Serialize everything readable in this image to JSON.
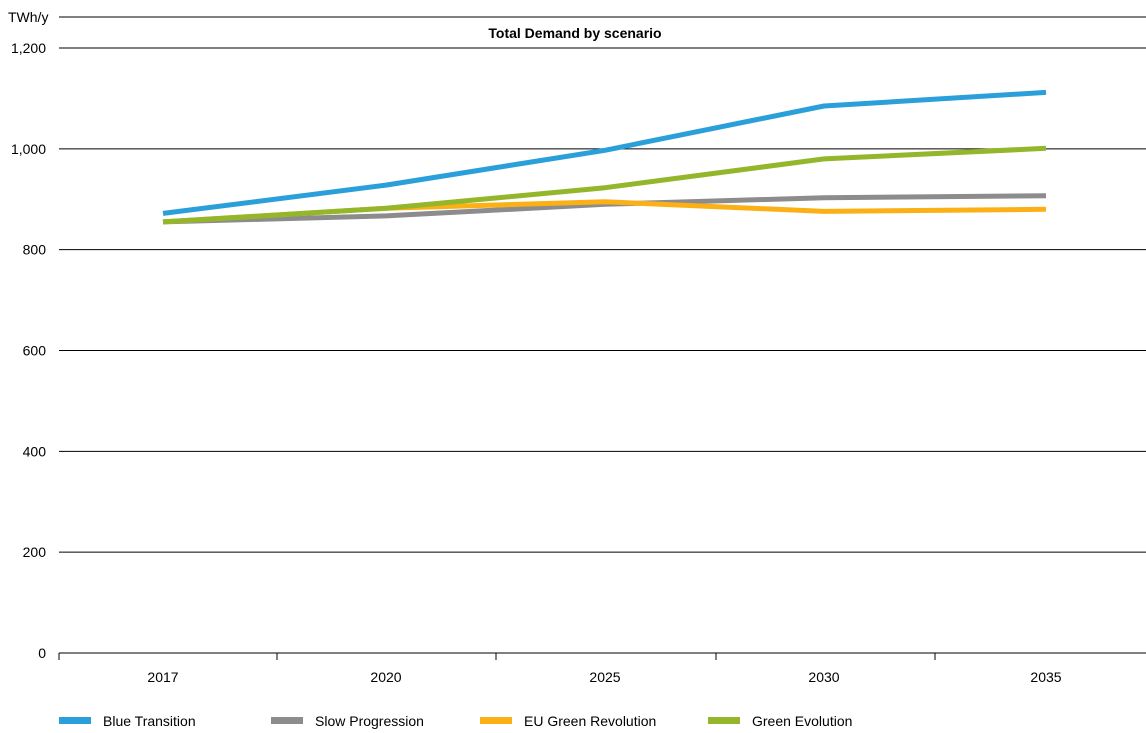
{
  "chart_data": {
    "type": "line",
    "title": "Total Demand by scenario",
    "ylabel": "TWh/y",
    "xlabel": "",
    "categories": [
      "2017",
      "2020",
      "2025",
      "2030",
      "2035"
    ],
    "ylim": [
      0,
      1200
    ],
    "yticks": [
      0,
      200,
      400,
      600,
      800,
      1000,
      1200
    ],
    "ytick_labels": [
      "0",
      "200",
      "400",
      "600",
      "800",
      "1,000",
      "1,200"
    ],
    "grid": "horizontal",
    "legend_position": "bottom",
    "series": [
      {
        "name": "Blue Transition",
        "color": "#2b9fd9",
        "values": [
          872,
          928,
          997,
          1085,
          1112
        ]
      },
      {
        "name": "Slow Progression",
        "color": "#8c8c8c",
        "values": [
          855,
          867,
          890,
          903,
          907
        ]
      },
      {
        "name": "EU Green Revolution",
        "color": "#fbb016",
        "values": [
          855,
          882,
          895,
          876,
          880
        ]
      },
      {
        "name": "Green Evolution",
        "color": "#94b62a",
        "values": [
          855,
          882,
          923,
          980,
          1001
        ]
      }
    ]
  }
}
